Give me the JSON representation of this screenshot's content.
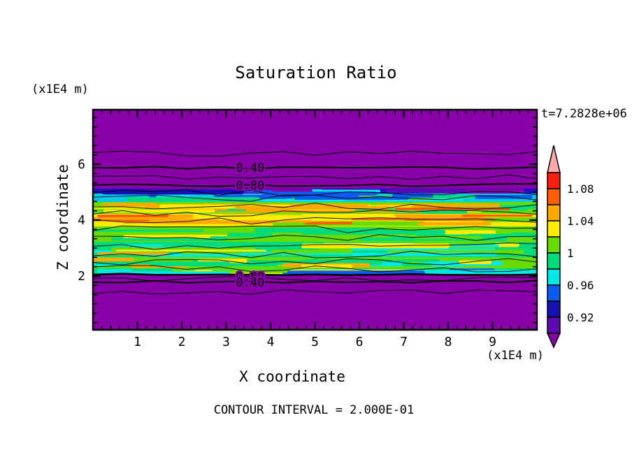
{
  "title": "Saturation Ratio",
  "time_label": "t=7.2828e+06",
  "footer_label": "CONTOUR INTERVAL = 2.000E-01",
  "axes": {
    "x_label": "X coordinate",
    "y_label": "Z coordinate",
    "x_units": "(x1E4 m)",
    "y_units": "(x1E4 m)",
    "x_ticks": [
      "1",
      "2",
      "3",
      "4",
      "5",
      "6",
      "7",
      "8",
      "9"
    ],
    "y_ticks": [
      "2",
      "4",
      "6"
    ]
  },
  "colorbar": {
    "tick_labels": [
      "1.08",
      "1.04",
      "1",
      "0.96",
      "0.92"
    ],
    "segment_colors_top_to_bottom": [
      "#F81E10",
      "#FF5F00",
      "#FFA800",
      "#FFEC00",
      "#66DC00",
      "#00DC7C",
      "#00E8E8",
      "#0A5CF0",
      "#1410B4",
      "#5A0AAE"
    ],
    "over_color": "#FFAAAA",
    "under_color": "#8A00A8"
  },
  "chart_data": {
    "type": "heatmap",
    "subtype": "filled-contour-plot",
    "title": "Saturation Ratio",
    "xlabel": "X coordinate",
    "ylabel": "Z coordinate",
    "x_units_multiplier": "(x1E4 m)",
    "y_units_multiplier": "(x1E4 m)",
    "xlim": [
      0,
      10
    ],
    "ylim": [
      0,
      7.95
    ],
    "x_major_ticks": [
      1,
      2,
      3,
      4,
      5,
      6,
      7,
      8,
      9
    ],
    "y_major_ticks": [
      2,
      4,
      6
    ],
    "time_annotation": "t=7.2828e+06",
    "contour_interval": 0.2,
    "contour_interval_label": "CONTOUR INTERVAL = 2.000E-01",
    "background_color": "#8A00A8",
    "colorbar_scale": {
      "tick_values": [
        1.08,
        1.04,
        1.0,
        0.96,
        0.92
      ],
      "range": [
        0.9,
        1.1
      ],
      "step": 0.02,
      "colors_top_to_bottom": [
        "#F81E10",
        "#FF5F00",
        "#FFA800",
        "#FFEC00",
        "#66DC00",
        "#00DC7C",
        "#00E8E8",
        "#0A5CF0",
        "#1410B4",
        "#5A0AAE"
      ],
      "over_color": "#FFAAAA",
      "under_color": "#8A00A8"
    },
    "field_summary": "Saturation ratio near 1.0 (green/yellow with orange highs and blue/cyan lows) in a horizontal band between z≈2.0 and z≈5.1; ratio near 0 (purple, below lowest contour) above and below the band.",
    "line_contours": [
      {
        "z": 6.38,
        "width": 1,
        "value": 0.2
      },
      {
        "z": 5.88,
        "width": 2,
        "value": 0.4
      },
      {
        "z": 5.55,
        "width": 1,
        "value": 0.6
      },
      {
        "z": 5.25,
        "width": 2,
        "value": 0.8
      },
      {
        "z": 2.05,
        "width": 2.5,
        "value": 0.8
      },
      {
        "z": 1.9,
        "width": 1,
        "value": 0.6
      },
      {
        "z": 1.8,
        "width": 2,
        "value": 0.4
      },
      {
        "z": 1.42,
        "width": 1,
        "value": 0.2
      }
    ],
    "inner_contours_z": [
      4.98,
      4.78,
      4.5,
      4.25,
      3.97,
      3.67,
      3.37,
      3.07,
      2.77,
      2.5,
      2.27
    ],
    "contour_labels": [
      {
        "text": "0.40",
        "x": 3.54,
        "z": 5.88
      },
      {
        "text": "0.80",
        "x": 3.54,
        "z": 5.25
      },
      {
        "text": "0.80",
        "x": 3.54,
        "z": 1.98
      },
      {
        "text": "0.40",
        "x": 3.54,
        "z": 1.78
      }
    ],
    "band": {
      "z_top": 5.125,
      "z_bottom": 2.05,
      "layers": [
        {
          "z_top": 5.125,
          "z_bottom": 4.95,
          "base": "#2210C4",
          "streaks": [
            "#8A00A8",
            "#0A5CF0",
            "#00E8E8",
            "#5A0AAE",
            "#1410B4"
          ]
        },
        {
          "z_top": 4.95,
          "z_bottom": 4.65,
          "base": "#00CCE8",
          "streaks": [
            "#0A5CF0",
            "#2210C4",
            "#66DC00",
            "#00DC7C",
            "#00E8E8"
          ]
        },
        {
          "z_top": 4.65,
          "z_bottom": 4.225,
          "base": "#66DC00",
          "streaks": [
            "#FFEC00",
            "#FFA800",
            "#00DC7C",
            "#FFEC00"
          ]
        },
        {
          "z_top": 4.225,
          "z_bottom": 3.775,
          "base": "#FFEC00",
          "streaks": [
            "#FFA800",
            "#FF5F00",
            "#66DC00",
            "#FFA800",
            "#FFEC00"
          ]
        },
        {
          "z_top": 3.775,
          "z_bottom": 3.225,
          "base": "#66DC00",
          "streaks": [
            "#00DC7C",
            "#FFEC00",
            "#66DC00",
            "#00DC7C"
          ]
        },
        {
          "z_top": 3.225,
          "z_bottom": 2.675,
          "base": "#00DC7C",
          "streaks": [
            "#66DC00",
            "#00E8E8",
            "#FFEC00",
            "#66DC00"
          ]
        },
        {
          "z_top": 2.675,
          "z_bottom": 2.275,
          "base": "#66DC00",
          "streaks": [
            "#FFEC00",
            "#FFA800",
            "#00DC7C",
            "#00E8E8"
          ]
        },
        {
          "z_top": 2.275,
          "z_bottom": 2.05,
          "base": "#00DC7C",
          "streaks": [
            "#00E8E8",
            "#66DC00",
            "#FFEC00",
            "#0A5CF0"
          ]
        }
      ],
      "features": [
        {
          "x": 0.2,
          "z": 5.08,
          "w": 3.2,
          "h": 0.16,
          "color": "#1410B4"
        },
        {
          "x": 3.8,
          "z": 5.02,
          "w": 2.6,
          "h": 0.14,
          "color": "#0A5CF0"
        },
        {
          "x": 6.6,
          "z": 5.1,
          "w": 1.8,
          "h": 0.12,
          "color": "#5A0AAE"
        },
        {
          "x": 8.6,
          "z": 4.9,
          "w": 1.3,
          "h": 0.14,
          "color": "#0A5CF0"
        },
        {
          "x": 6.8,
          "z": 4.45,
          "w": 2.6,
          "h": 0.09,
          "color": "#FF5F00"
        },
        {
          "x": 8.3,
          "z": 4.2,
          "w": 1.6,
          "h": 0.08,
          "color": "#FF5F00"
        },
        {
          "x": 0.1,
          "z": 4.2,
          "w": 1.6,
          "h": 0.1,
          "color": "#FF5F00"
        },
        {
          "x": 0.2,
          "z": 4.62,
          "w": 1.2,
          "h": 0.1,
          "color": "#FFA800"
        },
        {
          "x": 3.2,
          "z": 4.5,
          "w": 3.5,
          "h": 0.12,
          "color": "#FFA800"
        },
        {
          "x": 0.1,
          "z": 2.85,
          "w": 1.6,
          "h": 0.09,
          "color": "#FFA800"
        }
      ]
    }
  }
}
